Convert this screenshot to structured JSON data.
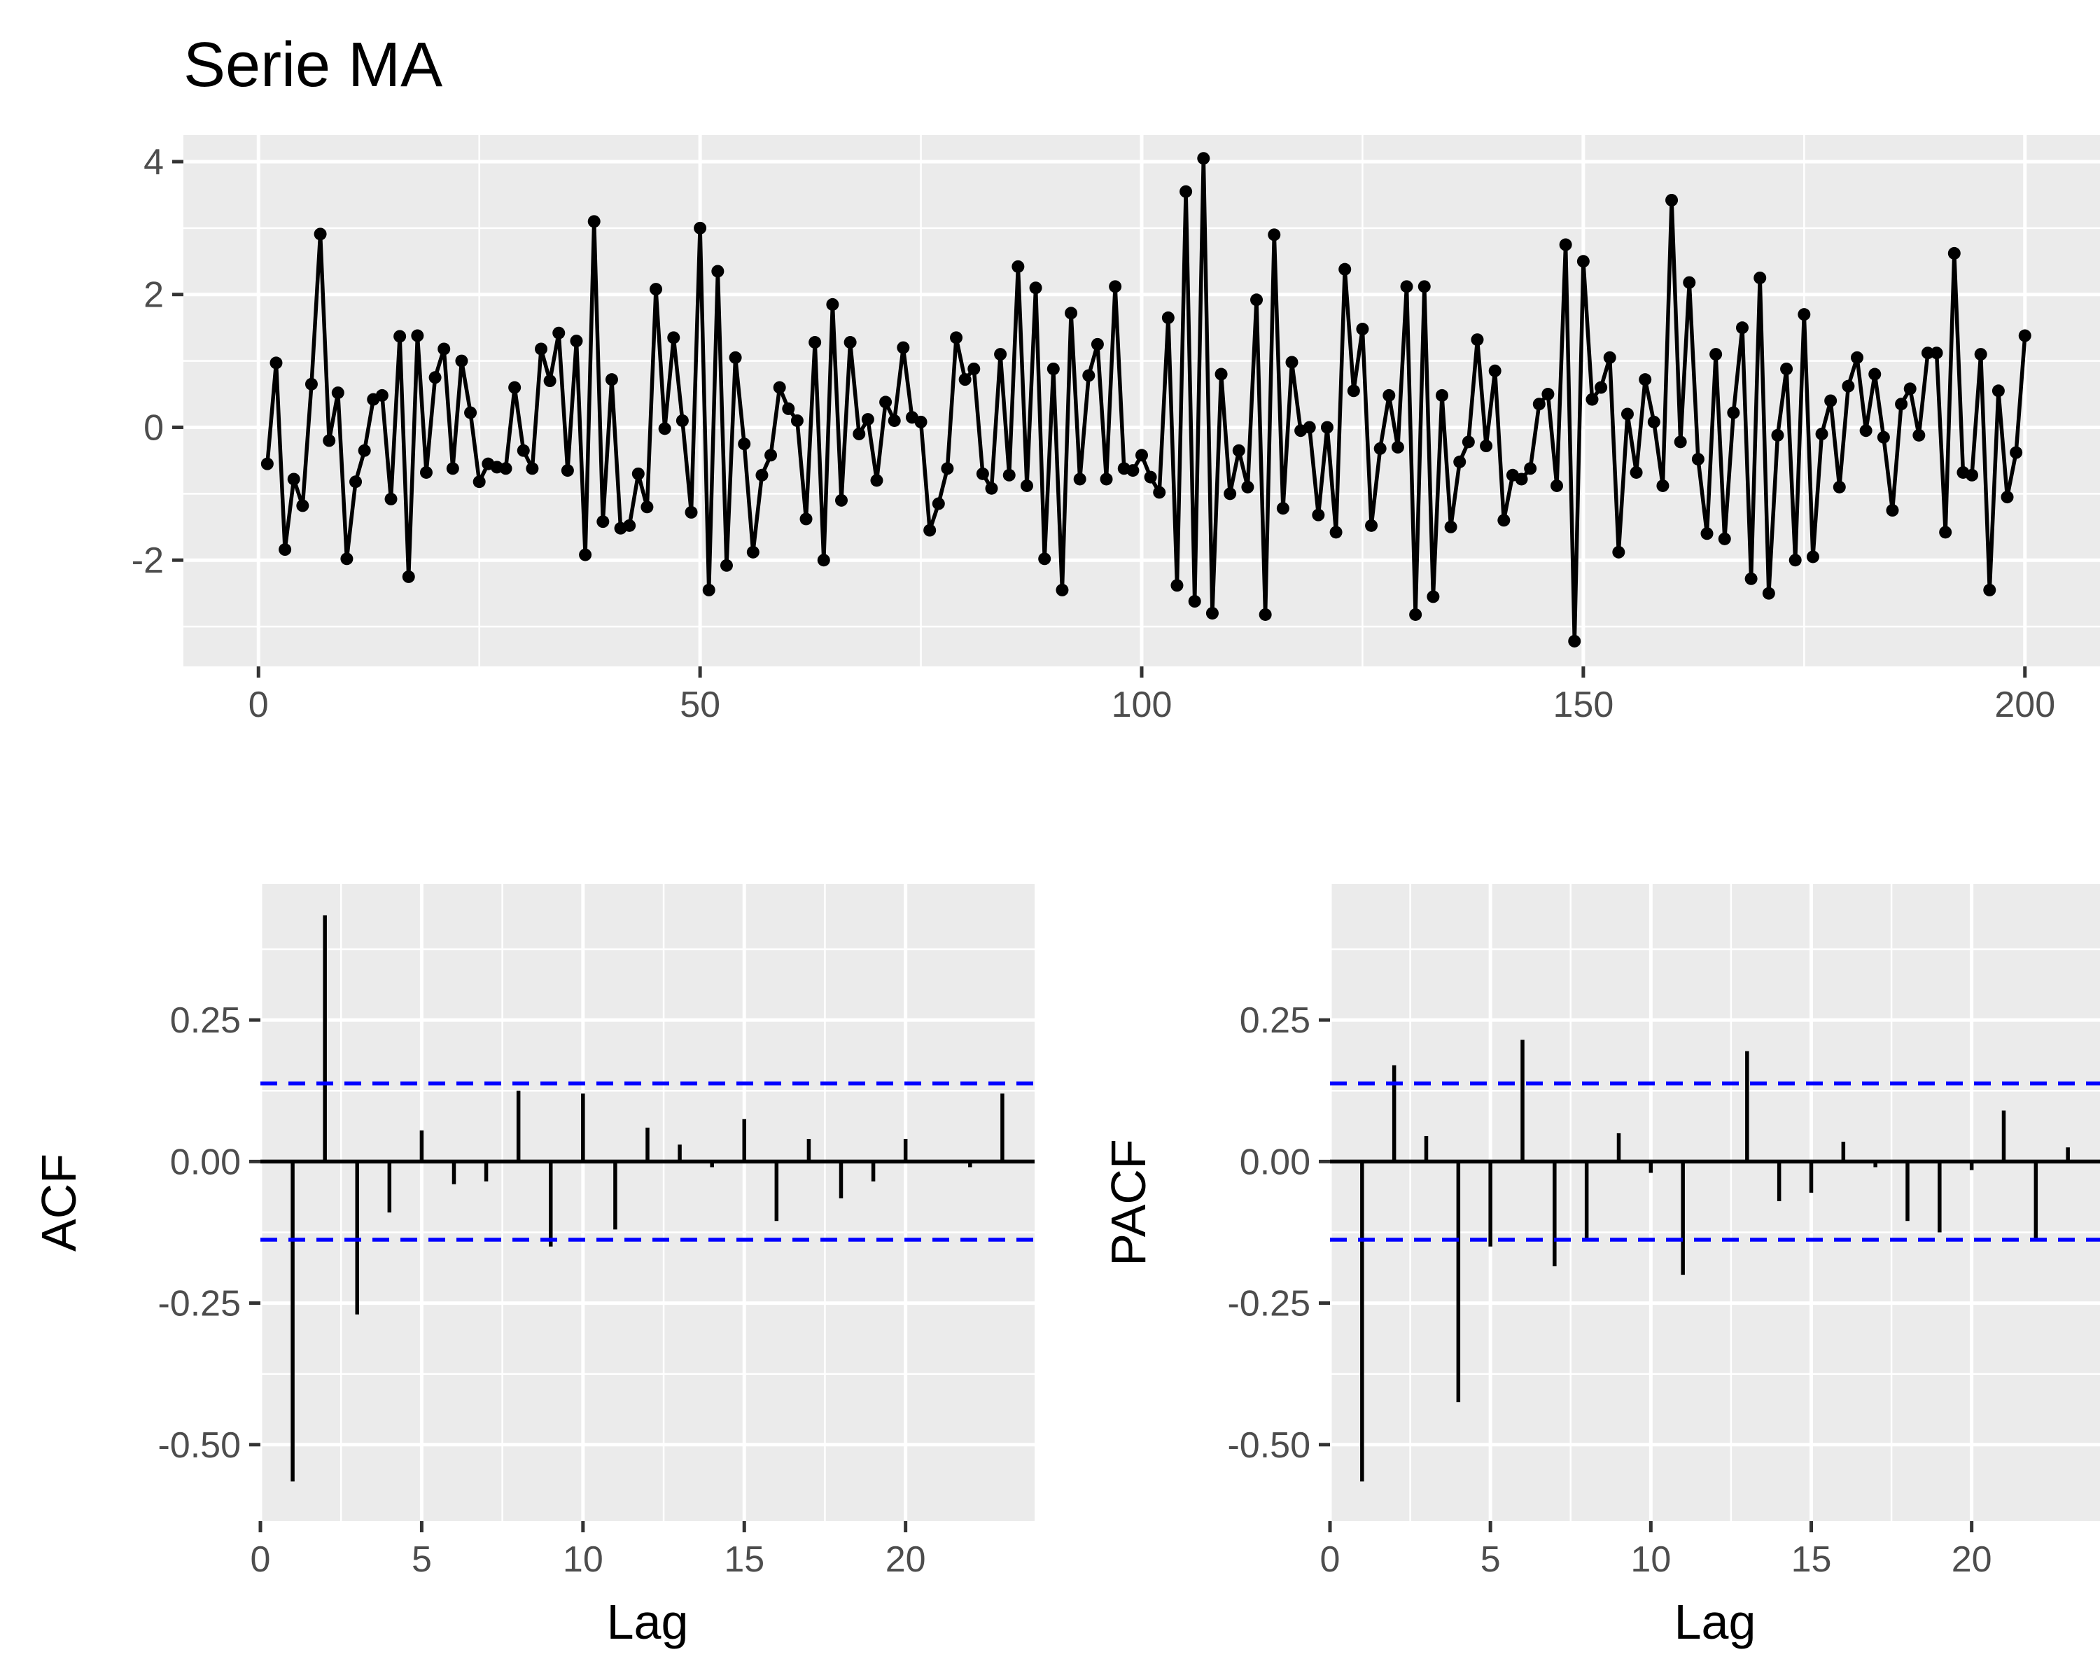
{
  "colors": {
    "panel_bg": "#ebebeb",
    "grid": "#ffffff",
    "series": "#000000",
    "ci": "#0000ff",
    "tick_text": "#4d4d4d",
    "text": "#000000"
  },
  "chart_data": [
    {
      "type": "line",
      "title": "Serie MA",
      "xlabel": "",
      "ylabel": "",
      "x_ticks": [
        "0",
        "50",
        "100",
        "150",
        "200"
      ],
      "y_ticks": [
        "-2",
        "0",
        "2",
        "4"
      ],
      "xlim": [
        -8.5,
        208.5
      ],
      "ylim": [
        -3.6,
        4.4
      ],
      "grid": true,
      "markers": true,
      "x_start": 1,
      "values": [
        -0.55,
        0.97,
        -1.84,
        -0.78,
        -1.18,
        0.65,
        2.91,
        -0.2,
        0.52,
        -1.98,
        -0.82,
        -0.35,
        0.42,
        0.48,
        -1.08,
        1.37,
        -2.25,
        1.38,
        -0.68,
        0.75,
        1.18,
        -0.62,
        1.0,
        0.22,
        -0.82,
        -0.55,
        -0.6,
        -0.62,
        0.6,
        -0.35,
        -0.62,
        1.18,
        0.7,
        1.42,
        -0.65,
        1.3,
        -1.92,
        3.1,
        -1.42,
        0.72,
        -1.52,
        -1.48,
        -0.7,
        -1.2,
        2.08,
        -0.02,
        1.35,
        0.1,
        -1.28,
        3.0,
        -2.45,
        2.35,
        -2.08,
        1.05,
        -0.25,
        -1.88,
        -0.72,
        -0.42,
        0.6,
        0.28,
        0.1,
        -1.38,
        1.28,
        -2.0,
        1.85,
        -1.1,
        1.28,
        -0.1,
        0.12,
        -0.8,
        0.38,
        0.1,
        1.2,
        0.15,
        0.08,
        -1.55,
        -1.15,
        -0.62,
        1.35,
        0.72,
        0.88,
        -0.7,
        -0.92,
        1.1,
        -0.72,
        2.42,
        -0.88,
        2.1,
        -1.98,
        0.88,
        -2.45,
        1.72,
        -0.78,
        0.78,
        1.25,
        -0.78,
        2.12,
        -0.62,
        -0.65,
        -0.42,
        -0.75,
        -0.98,
        1.65,
        -2.38,
        3.55,
        -2.62,
        4.05,
        -2.8,
        0.8,
        -1.0,
        -0.35,
        -0.9,
        1.92,
        -2.82,
        2.9,
        -1.22,
        0.98,
        -0.05,
        0.0,
        -1.32,
        0.0,
        -1.58,
        2.38,
        0.55,
        1.48,
        -1.48,
        -0.32,
        0.48,
        -0.3,
        2.12,
        -2.82,
        2.12,
        -2.55,
        0.48,
        -1.5,
        -0.52,
        -0.22,
        1.32,
        -0.28,
        0.85,
        -1.4,
        -0.72,
        -0.78,
        -0.62,
        0.35,
        0.5,
        -0.88,
        2.75,
        -3.22,
        2.5,
        0.42,
        0.6,
        1.05,
        -1.88,
        0.2,
        -0.68,
        0.72,
        0.08,
        -0.88,
        3.42,
        -0.22,
        2.18,
        -0.48,
        -1.6,
        1.1,
        -1.68,
        0.22,
        1.5,
        -2.28,
        2.25,
        -2.5,
        -0.12,
        0.88,
        -2.0,
        1.7,
        -1.95,
        -0.1,
        0.4,
        -0.9,
        0.62,
        1.05,
        -0.05,
        0.8,
        -0.15,
        -1.25,
        0.35,
        0.58,
        -0.12,
        1.12,
        1.12,
        -1.58,
        2.62,
        -0.68,
        -0.72,
        1.1,
        -2.45,
        0.55,
        -1.05,
        -0.38,
        1.38
      ]
    },
    {
      "type": "bar",
      "title": "",
      "xlabel": "Lag",
      "ylabel": "ACF",
      "x_ticks": [
        "0",
        "5",
        "10",
        "15",
        "20"
      ],
      "y_ticks": [
        "-0.50",
        "-0.25",
        "0.00",
        "0.25"
      ],
      "xlim": [
        0,
        24
      ],
      "ylim": [
        -0.635,
        0.49
      ],
      "grid": true,
      "lags": [
        1,
        2,
        3,
        4,
        5,
        6,
        7,
        8,
        9,
        10,
        11,
        12,
        13,
        14,
        15,
        16,
        17,
        18,
        19,
        20,
        21,
        22,
        23
      ],
      "values": [
        -0.565,
        0.435,
        -0.27,
        -0.09,
        0.055,
        -0.04,
        -0.035,
        0.125,
        -0.15,
        0.12,
        -0.12,
        0.06,
        0.03,
        -0.01,
        0.075,
        -0.105,
        0.04,
        -0.065,
        -0.035,
        0.04,
        0.0,
        -0.01,
        0.12
      ],
      "ci": 0.138
    },
    {
      "type": "bar",
      "title": "",
      "xlabel": "Lag",
      "ylabel": "PACF",
      "x_ticks": [
        "0",
        "5",
        "10",
        "15",
        "20"
      ],
      "y_ticks": [
        "-0.50",
        "-0.25",
        "0.00",
        "0.25"
      ],
      "xlim": [
        0,
        24
      ],
      "ylim": [
        -0.635,
        0.49
      ],
      "grid": true,
      "lags": [
        1,
        2,
        3,
        4,
        5,
        6,
        7,
        8,
        9,
        10,
        11,
        12,
        13,
        14,
        15,
        16,
        17,
        18,
        19,
        20,
        21,
        22,
        23
      ],
      "values": [
        -0.565,
        0.17,
        0.045,
        -0.425,
        -0.15,
        0.215,
        -0.185,
        -0.14,
        0.05,
        -0.02,
        -0.2,
        0.0,
        0.195,
        -0.07,
        -0.055,
        0.035,
        -0.01,
        -0.105,
        -0.125,
        -0.015,
        0.09,
        -0.135,
        0.025
      ],
      "ci": 0.138
    }
  ]
}
